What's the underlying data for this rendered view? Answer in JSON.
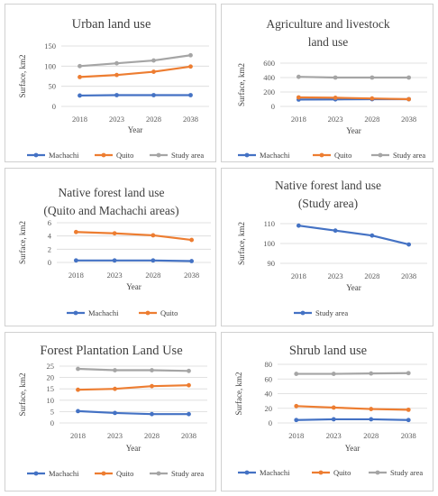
{
  "chart_data": [
    {
      "type": "line",
      "title": [
        "Urban land use"
      ],
      "xlabel": "Year",
      "ylabel": "Surface, km2",
      "categories": [
        "2018",
        "2023",
        "2028",
        "2038"
      ],
      "ylim": [
        0,
        150
      ],
      "yticks": [
        0,
        50,
        100,
        150
      ],
      "grid": true,
      "legend_position": "bottom",
      "series": [
        {
          "name": "Machachi",
          "color": "#4472c4",
          "values": [
            27,
            28,
            28,
            28
          ]
        },
        {
          "name": "Quito",
          "color": "#ed7d31",
          "values": [
            73,
            78,
            86,
            99
          ]
        },
        {
          "name": "Study area",
          "color": "#a5a5a5",
          "values": [
            100,
            107,
            114,
            127
          ]
        }
      ]
    },
    {
      "type": "line",
      "title": [
        "Agriculture and livestock",
        "land use"
      ],
      "xlabel": "Year",
      "ylabel": "Surface, km2",
      "categories": [
        "2018",
        "2023",
        "2028",
        "2038"
      ],
      "ylim": [
        0,
        600
      ],
      "yticks": [
        0,
        200,
        400,
        600
      ],
      "grid": true,
      "legend_position": "bottom",
      "series": [
        {
          "name": "Machachi",
          "color": "#4472c4",
          "values": [
            95,
            97,
            100,
            100
          ]
        },
        {
          "name": "Quito",
          "color": "#ed7d31",
          "values": [
            125,
            120,
            110,
            100
          ]
        },
        {
          "name": "Study area",
          "color": "#a5a5a5",
          "values": [
            410,
            400,
            400,
            400
          ]
        }
      ]
    },
    {
      "type": "line",
      "title": [
        "Native forest land use",
        "(Quito and Machachi areas)"
      ],
      "xlabel": "Year",
      "ylabel": "Surface, km2",
      "categories": [
        "2018",
        "2023",
        "2028",
        "2038"
      ],
      "ylim": [
        0,
        6
      ],
      "yticks": [
        0,
        2,
        4,
        6
      ],
      "grid": true,
      "legend_position": "bottom",
      "series": [
        {
          "name": "Machachi",
          "color": "#4472c4",
          "values": [
            0.3,
            0.3,
            0.3,
            0.2
          ]
        },
        {
          "name": "Quito",
          "color": "#ed7d31",
          "values": [
            4.6,
            4.4,
            4.1,
            3.4
          ]
        }
      ]
    },
    {
      "type": "line",
      "title": [
        "Native forest land use",
        "(Study area)"
      ],
      "xlabel": "Year",
      "ylabel": "Surface, km2",
      "categories": [
        "2018",
        "2023",
        "2028",
        "2038"
      ],
      "ylim": [
        90,
        110
      ],
      "yticks": [
        90,
        100,
        110
      ],
      "grid": true,
      "legend_position": "bottom",
      "series": [
        {
          "name": "Study area",
          "color": "#4472c4",
          "values": [
            109,
            106.5,
            104,
            99.5
          ]
        }
      ]
    },
    {
      "type": "line",
      "title": [
        "Forest Plantation Land Use"
      ],
      "xlabel": "Year",
      "ylabel": "Surface, km2",
      "categories": [
        "2018",
        "2023",
        "2028",
        "2038"
      ],
      "ylim": [
        0,
        25
      ],
      "yticks": [
        0,
        5,
        10,
        15,
        20,
        25
      ],
      "grid": true,
      "legend_position": "bottom",
      "series": [
        {
          "name": "Machachi",
          "color": "#4472c4",
          "values": [
            5.2,
            4.4,
            3.9,
            3.9
          ]
        },
        {
          "name": "Quito",
          "color": "#ed7d31",
          "values": [
            14.6,
            15.0,
            16.2,
            16.6
          ]
        },
        {
          "name": "Study area",
          "color": "#a5a5a5",
          "values": [
            23.8,
            23.2,
            23.2,
            22.9
          ]
        }
      ]
    },
    {
      "type": "line",
      "title": [
        "Shrub land use"
      ],
      "xlabel": "Year",
      "ylabel": "Surface, km2",
      "categories": [
        "2018",
        "2023",
        "2028",
        "2038"
      ],
      "ylim": [
        0,
        80
      ],
      "yticks": [
        0,
        20,
        40,
        60,
        80
      ],
      "grid": true,
      "legend_position": "bottom",
      "series": [
        {
          "name": "Machachi",
          "color": "#4472c4",
          "values": [
            4,
            5,
            5,
            4
          ]
        },
        {
          "name": "Quito",
          "color": "#ed7d31",
          "values": [
            23,
            21,
            19,
            18
          ]
        },
        {
          "name": "Study area",
          "color": "#a5a5a5",
          "values": [
            67,
            67,
            67.5,
            68
          ]
        }
      ]
    }
  ]
}
